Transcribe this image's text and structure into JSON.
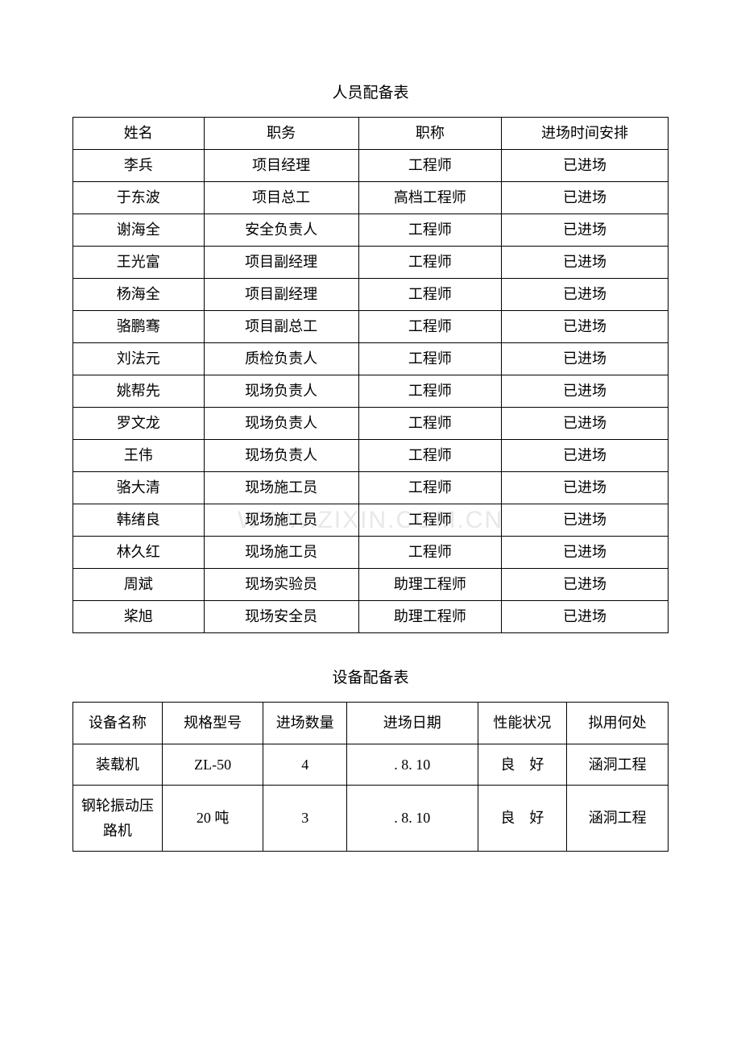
{
  "personnel": {
    "title": "人员配备表",
    "columns": [
      "姓名",
      "职务",
      "职称",
      "进场时间安排"
    ],
    "rows": [
      [
        "李兵",
        "项目经理",
        "工程师",
        "已进场"
      ],
      [
        "于东波",
        "项目总工",
        "高档工程师",
        "已进场"
      ],
      [
        "谢海全",
        "安全负责人",
        "工程师",
        "已进场"
      ],
      [
        "王光富",
        "项目副经理",
        "工程师",
        "已进场"
      ],
      [
        "杨海全",
        "项目副经理",
        "工程师",
        "已进场"
      ],
      [
        "骆鹏骞",
        "项目副总工",
        "工程师",
        "已进场"
      ],
      [
        "刘法元",
        "质检负责人",
        "工程师",
        "已进场"
      ],
      [
        "姚帮先",
        "现场负责人",
        "工程师",
        "已进场"
      ],
      [
        "罗文龙",
        "现场负责人",
        "工程师",
        "已进场"
      ],
      [
        "王伟",
        "现场负责人",
        "工程师",
        "已进场"
      ],
      [
        "骆大清",
        "现场施工员",
        "工程师",
        "已进场"
      ],
      [
        "韩绪良",
        "现场施工员",
        "工程师",
        "已进场"
      ],
      [
        "林久红",
        "现场施工员",
        "工程师",
        "已进场"
      ],
      [
        "周斌",
        "现场实验员",
        "助理工程师",
        "已进场"
      ],
      [
        "桨旭",
        "现场安全员",
        "助理工程师",
        "已进场"
      ]
    ],
    "column_widths": [
      "22%",
      "26%",
      "24%",
      "28%"
    ],
    "watermark_text": "WWW.ZIXIN.COM.CN",
    "watermark_row_index": 11
  },
  "equipment": {
    "title": "设备配备表",
    "columns": [
      "设备名称",
      "规格型号",
      "进场数量",
      "进场日期",
      "性能状况",
      "拟用何处"
    ],
    "rows": [
      [
        "装载机",
        "ZL-50",
        "4",
        ". 8. 10",
        "良　好",
        "涵洞工程"
      ],
      [
        "钢轮振动压路机",
        "20 吨",
        "3",
        ". 8. 10",
        "良　好",
        "涵洞工程"
      ]
    ],
    "column_widths": [
      "15%",
      "17%",
      "14%",
      "22%",
      "15%",
      "17%"
    ]
  },
  "styling": {
    "background_color": "#ffffff",
    "border_color": "#000000",
    "text_color": "#000000",
    "title_fontsize": 19,
    "cell_fontsize": 18,
    "watermark_color": "#e8e8e8"
  }
}
